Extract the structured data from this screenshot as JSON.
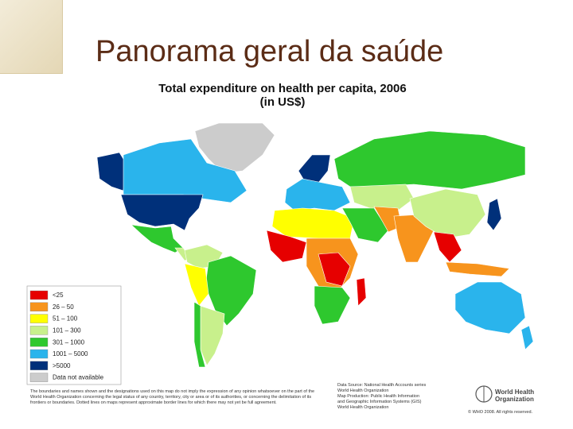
{
  "header": {
    "title": "Panorama geral da saúde"
  },
  "map": {
    "title": "Total expenditure on health per capita, 2006",
    "subtitle": "(in US$)",
    "legend": [
      {
        "label": "<25",
        "color": "#e60000"
      },
      {
        "label": "26 – 50",
        "color": "#f7941d"
      },
      {
        "label": "51 – 100",
        "color": "#ffff00"
      },
      {
        "label": "101 – 300",
        "color": "#c8f08c"
      },
      {
        "label": "301 – 1000",
        "color": "#2ec82e"
      },
      {
        "label": "1001 – 5000",
        "color": "#2ab4ec"
      },
      {
        "label": ">5000",
        "color": "#00307a"
      },
      {
        "label": "Data not available",
        "color": "#cccccc"
      }
    ],
    "disclaimer": "The boundaries and names shown and the designations used on this map do not imply the expression of any opinion whatsoever on the part of the World Health Organization concerning the legal status of any country, territory, city or area or of its authorities, or concerning the delimitation of its frontiers or boundaries. Dotted lines on maps represent approximate border lines for which there may not yet be full agreement.",
    "source": [
      "Data Source: National Health Accounts series",
      "World Health Organization",
      "Map Production: Public Health Information",
      "and Geographic Information Systems (GIS)",
      "World Health Organization"
    ],
    "logo": "World Health Organization",
    "copyright": "© WHO 2008. All rights reserved."
  }
}
